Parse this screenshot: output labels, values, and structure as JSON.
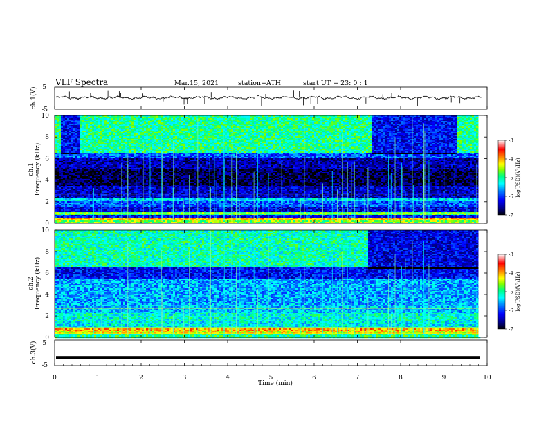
{
  "header": {
    "title": "VLF  Spectra",
    "date": "Mar.15, 2021",
    "station": "station=ATH",
    "start": "start  UT  =   23: 0  : 1"
  },
  "chart_data": [
    {
      "type": "line",
      "name": "ch1-waveform",
      "ylabel": "ch.1(V)",
      "ylim": [
        -5,
        5
      ],
      "yticks": [
        "5",
        "-5"
      ],
      "xlim": [
        0,
        10
      ],
      "baseline": 0.2,
      "color": "#000000"
    },
    {
      "type": "heatmap",
      "name": "ch1-spectrogram",
      "ylabel": "ch.1\nFrequency (kHz)",
      "ylabel_line1": "ch.1",
      "ylabel_line2": "Frequency (kHz)",
      "xlim": [
        0,
        9.8
      ],
      "ylim": [
        0,
        10
      ],
      "yticks": [
        "0",
        "2",
        "4",
        "6",
        "8",
        "10"
      ],
      "bands": [
        {
          "f0": 0,
          "f1": 0.2,
          "level": -4.6
        },
        {
          "f0": 0.2,
          "f1": 0.5,
          "level": -4.0
        },
        {
          "f0": 0.5,
          "f1": 0.8,
          "level": -6.2
        },
        {
          "f0": 0.8,
          "f1": 1.0,
          "level": -4.8
        },
        {
          "f0": 1.0,
          "f1": 1.6,
          "level": -6.3
        },
        {
          "f0": 1.6,
          "f1": 2.0,
          "level": -5.9
        },
        {
          "f0": 2.0,
          "f1": 2.3,
          "level": -5.4
        },
        {
          "f0": 2.3,
          "f1": 3.5,
          "level": -6.4
        },
        {
          "f0": 3.5,
          "f1": 5.0,
          "level": -6.8
        },
        {
          "f0": 5.0,
          "f1": 6.0,
          "level": -6.5
        },
        {
          "f0": 6.0,
          "f1": 6.6,
          "level": -5.9
        },
        {
          "f0": 6.6,
          "f1": 10.0,
          "level": -5.0
        }
      ],
      "colorbar": {
        "label": "log(PSD)(V²/Hz)",
        "range": [
          -7,
          -3
        ],
        "ticks": [
          "-3",
          "-4",
          "-5",
          "-6",
          "-7"
        ]
      }
    },
    {
      "type": "heatmap",
      "name": "ch2-spectrogram",
      "ylabel": "ch.2\nFrequency (kHz)",
      "ylabel_line1": "ch.2",
      "ylabel_line2": "Frequency (kHz)",
      "xlim": [
        0,
        9.8
      ],
      "ylim": [
        0,
        10
      ],
      "yticks": [
        "0",
        "2",
        "4",
        "6",
        "8",
        "10"
      ],
      "bands": [
        {
          "f0": 0,
          "f1": 0.3,
          "level": -5.0
        },
        {
          "f0": 0.3,
          "f1": 0.6,
          "level": -4.3
        },
        {
          "f0": 0.6,
          "f1": 0.9,
          "level": -4.0
        },
        {
          "f0": 0.9,
          "f1": 1.5,
          "level": -5.3
        },
        {
          "f0": 1.5,
          "f1": 2.2,
          "level": -5.2
        },
        {
          "f0": 2.2,
          "f1": 3.0,
          "level": -5.5
        },
        {
          "f0": 3.0,
          "f1": 4.0,
          "level": -5.6
        },
        {
          "f0": 4.0,
          "f1": 5.5,
          "level": -5.6
        },
        {
          "f0": 5.5,
          "f1": 6.5,
          "level": -6.2
        },
        {
          "f0": 6.5,
          "f1": 10.0,
          "level": -5.1
        }
      ],
      "colorbar": {
        "label": "log(PSD)(V²/Hz)",
        "range": [
          -7,
          -3
        ],
        "ticks": [
          "-3",
          "-4",
          "-5",
          "-6",
          "-7"
        ]
      }
    },
    {
      "type": "line",
      "name": "ch3-waveform",
      "ylabel": "ch.3(V)",
      "ylim": [
        -5,
        5
      ],
      "yticks": [
        "5",
        "-5"
      ],
      "xlim": [
        0,
        10
      ],
      "baseline": -1.8,
      "color": "#000000"
    }
  ],
  "xaxis": {
    "label": "Time  (min)",
    "ticks": [
      "0",
      "1",
      "2",
      "3",
      "4",
      "5",
      "6",
      "7",
      "8",
      "9",
      "10"
    ],
    "range": [
      0,
      10
    ]
  },
  "colors": {
    "colormap": [
      "#000000",
      "#00007f",
      "#0000ff",
      "#0080ff",
      "#00ffff",
      "#00ff80",
      "#80ff00",
      "#ffff00",
      "#ff8000",
      "#ff0000",
      "#ffffff"
    ]
  }
}
